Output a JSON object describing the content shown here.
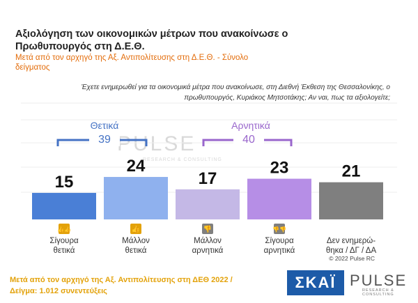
{
  "header": {
    "title": "Αξιολόγηση των οικονομικών μέτρων που ανακοίνωσε ο Πρωθυπουργός στη Δ.Ε.Θ.",
    "subtitle": "Μετά από τον αρχηγό της Αξ. Αντιπολίτευσης στη Δ.Ε.Θ. - Σύνολο δείγματος"
  },
  "question": "Έχετε ενημερωθεί για τα οικονομικά μέτρα που ανακοίνωσε, στη Διεθνή Έκθεση της Θεσσαλονίκης, ο πρωθυπουργός, Κυριάκος Μητσοτάκης; Αν ναι, πως τα αξιολογείτε;",
  "groups": {
    "positive": {
      "label": "Θετικά",
      "value": "39",
      "color": "#4472c4"
    },
    "negative": {
      "label": "Αρνητικά",
      "value": "40",
      "color": "#9966cc"
    }
  },
  "watermark": {
    "text": "PULSE",
    "sub": "RESEARCH & CONSULTING"
  },
  "chart_data": {
    "type": "bar",
    "categories": [
      "Σίγουρα θετικά",
      "Μάλλον θετικά",
      "Μάλλον αρνητικά",
      "Σίγουρα αρνητικά",
      "Δεν ενημερώθηκα / ΔΓ / ΔΑ"
    ],
    "category_lines": [
      [
        "Σίγουρα",
        "θετικά"
      ],
      [
        "Μάλλον",
        "θετικά"
      ],
      [
        "Μάλλον",
        "αρνητικά"
      ],
      [
        "Σίγουρα",
        "αρνητικά"
      ],
      [
        "Δεν ενημερώ-",
        "θηκα / ΔΓ / ΔΑ"
      ]
    ],
    "values": [
      15,
      24,
      17,
      23,
      21
    ],
    "colors": [
      "#4a7fd6",
      "#8fb1ee",
      "#c4b8e6",
      "#b68ee6",
      "#7f7f7f"
    ],
    "icon_colors": [
      "#e3a20a",
      "#e3a20a",
      "#7f7f7f",
      "#7f7f7f",
      null
    ],
    "icons": [
      "double-thumbs-up-icon",
      "thumb-up-icon",
      "thumb-down-icon",
      "double-thumbs-down-icon",
      null
    ],
    "ylim": [
      0,
      30
    ]
  },
  "footer": {
    "line1": "Μετά από τον αρχηγό της Αξ. Αντιπολίτευσης στη ΔΕΘ  2022  /",
    "line2": "Δείγμα:  1.012 συνεντεύξεις",
    "copyright": "© 2022 Pulse RC",
    "brand1": "ΣΚΑΪ",
    "brand2": "PULSE",
    "brand2_sub": "RESEARCH & CONSULTING"
  }
}
